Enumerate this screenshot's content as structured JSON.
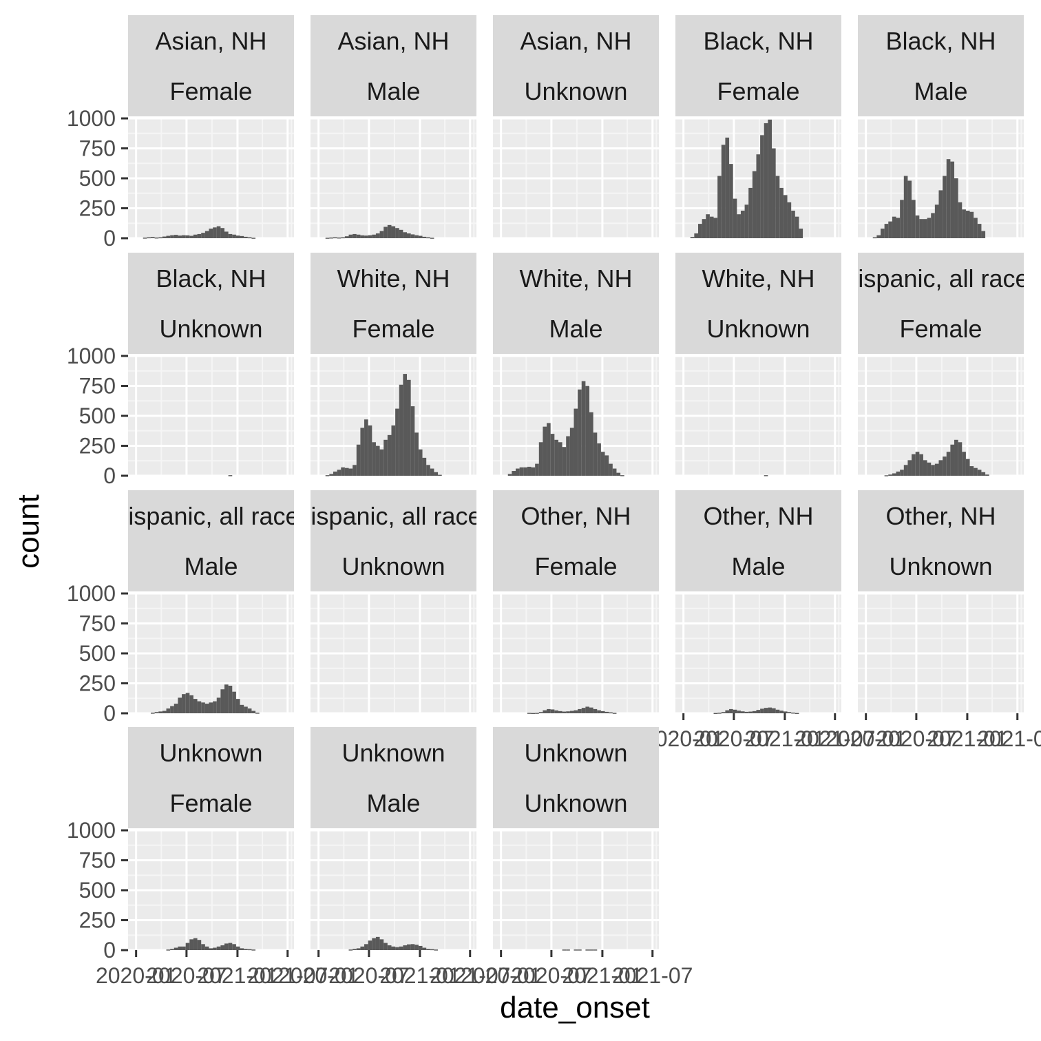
{
  "chart_data": {
    "type": "bar",
    "subtype": "faceted histogram",
    "xlabel": "date_onset",
    "ylabel": "count",
    "ylim": [
      0,
      1000
    ],
    "y_ticks": [
      0,
      250,
      500,
      750,
      1000
    ],
    "y_tick_labels": [
      "0",
      "250",
      "500",
      "750",
      "1000"
    ],
    "x_tick_labels": [
      "2020-01",
      "2020-07",
      "2021-01",
      "2021-07"
    ],
    "xlim": [
      "2019-12-03",
      "2021-07-24"
    ],
    "bin_start": "2019-12-29",
    "bin_width_days": 14,
    "grid": true,
    "facets": [
      {
        "strip": [
          "Asian, NH",
          "Female"
        ],
        "values": [
          0,
          0,
          5,
          8,
          10,
          6,
          8,
          14,
          20,
          25,
          28,
          22,
          25,
          24,
          20,
          30,
          35,
          45,
          60,
          80,
          90,
          100,
          85,
          55,
          35,
          30,
          22,
          18,
          12,
          8,
          4,
          0
        ]
      },
      {
        "strip": [
          "Asian, NH",
          "Male"
        ],
        "values": [
          0,
          0,
          4,
          6,
          8,
          6,
          8,
          16,
          30,
          35,
          30,
          24,
          22,
          25,
          30,
          40,
          60,
          95,
          110,
          100,
          85,
          70,
          50,
          40,
          32,
          25,
          20,
          12,
          8,
          4,
          0,
          0
        ]
      },
      {
        "strip": [
          "Asian, NH",
          "Unknown"
        ],
        "values": [
          0,
          0,
          0,
          0,
          0,
          0,
          0,
          0,
          0,
          0,
          0,
          0,
          0,
          0,
          0,
          0,
          0,
          0,
          0,
          0,
          0,
          0,
          0,
          0,
          0,
          0,
          0,
          0,
          0,
          0,
          0,
          0
        ]
      },
      {
        "strip": [
          "Black, NH",
          "Female"
        ],
        "values": [
          0,
          0,
          10,
          40,
          120,
          160,
          200,
          180,
          170,
          520,
          780,
          840,
          620,
          330,
          200,
          230,
          280,
          420,
          560,
          700,
          860,
          960,
          990,
          750,
          520,
          420,
          360,
          300,
          230,
          180,
          80,
          0
        ]
      },
      {
        "strip": [
          "Black, NH",
          "Male"
        ],
        "values": [
          0,
          0,
          8,
          25,
          80,
          120,
          140,
          180,
          170,
          320,
          520,
          480,
          320,
          190,
          160,
          160,
          170,
          210,
          280,
          400,
          520,
          660,
          640,
          500,
          300,
          240,
          230,
          220,
          170,
          120,
          60,
          0
        ]
      },
      {
        "strip": [
          "Black, NH",
          "Unknown"
        ],
        "values": [
          0,
          0,
          0,
          0,
          0,
          0,
          0,
          0,
          0,
          0,
          0,
          0,
          0,
          0,
          0,
          0,
          0,
          0,
          0,
          0,
          0,
          0,
          0,
          0,
          5,
          0,
          0,
          0,
          0,
          0,
          0,
          0
        ]
      },
      {
        "strip": [
          "White, NH",
          "Female"
        ],
        "values": [
          0,
          0,
          5,
          15,
          35,
          50,
          70,
          65,
          60,
          90,
          260,
          400,
          470,
          420,
          280,
          250,
          220,
          300,
          340,
          420,
          560,
          760,
          850,
          800,
          580,
          360,
          220,
          150,
          90,
          60,
          30,
          8
        ]
      },
      {
        "strip": [
          "White, NH",
          "Male"
        ],
        "values": [
          0,
          0,
          15,
          40,
          60,
          70,
          70,
          75,
          70,
          100,
          280,
          410,
          440,
          350,
          300,
          280,
          240,
          330,
          400,
          560,
          720,
          790,
          750,
          530,
          360,
          270,
          200,
          170,
          100,
          60,
          25,
          5
        ]
      },
      {
        "strip": [
          "White, NH",
          "Unknown"
        ],
        "values": [
          0,
          0,
          0,
          0,
          0,
          0,
          0,
          0,
          0,
          0,
          0,
          0,
          0,
          0,
          0,
          0,
          0,
          0,
          0,
          0,
          0,
          5,
          0,
          0,
          0,
          0,
          0,
          0,
          0,
          0,
          0,
          0
        ]
      },
      {
        "strip": [
          "Hispanic, all races",
          "Female"
        ],
        "values": [
          0,
          0,
          0,
          0,
          0,
          4,
          10,
          20,
          35,
          50,
          90,
          130,
          180,
          200,
          180,
          130,
          110,
          90,
          100,
          130,
          160,
          200,
          260,
          300,
          280,
          200,
          140,
          80,
          65,
          50,
          30,
          10
        ]
      },
      {
        "strip": [
          "Hispanic, all races",
          "Male"
        ],
        "values": [
          0,
          0,
          0,
          0,
          5,
          10,
          15,
          20,
          40,
          60,
          80,
          130,
          160,
          170,
          150,
          120,
          100,
          90,
          80,
          90,
          100,
          130,
          200,
          240,
          230,
          180,
          120,
          70,
          55,
          40,
          20,
          5
        ]
      },
      {
        "strip": [
          "Hispanic, all races",
          "Unknown"
        ],
        "values": [
          0,
          0,
          0,
          0,
          0,
          0,
          0,
          0,
          0,
          0,
          0,
          0,
          0,
          0,
          0,
          0,
          0,
          0,
          0,
          0,
          0,
          0,
          0,
          0,
          0,
          0,
          0,
          0,
          0,
          0,
          0,
          0
        ]
      },
      {
        "strip": [
          "Other, NH",
          "Female"
        ],
        "values": [
          0,
          0,
          0,
          0,
          0,
          0,
          0,
          4,
          3,
          4,
          10,
          25,
          35,
          32,
          24,
          18,
          14,
          16,
          20,
          25,
          35,
          45,
          55,
          48,
          35,
          25,
          18,
          12,
          8,
          4,
          0,
          0
        ]
      },
      {
        "strip": [
          "Other, NH",
          "Male"
        ],
        "values": [
          0,
          0,
          0,
          0,
          0,
          0,
          0,
          0,
          3,
          5,
          10,
          25,
          35,
          30,
          22,
          16,
          12,
          14,
          18,
          28,
          38,
          45,
          48,
          42,
          30,
          22,
          15,
          10,
          6,
          3,
          0,
          0
        ]
      },
      {
        "strip": [
          "Other, NH",
          "Unknown"
        ],
        "values": [
          0,
          0,
          0,
          0,
          0,
          0,
          0,
          0,
          0,
          0,
          0,
          0,
          0,
          0,
          0,
          0,
          0,
          0,
          0,
          0,
          0,
          0,
          0,
          0,
          0,
          0,
          0,
          0,
          0,
          0,
          0,
          0
        ]
      },
      {
        "strip": [
          "Unknown",
          "Female"
        ],
        "values": [
          0,
          0,
          0,
          0,
          0,
          0,
          0,
          0,
          5,
          10,
          20,
          30,
          30,
          60,
          90,
          100,
          85,
          50,
          30,
          15,
          20,
          30,
          40,
          55,
          60,
          50,
          30,
          15,
          10,
          8,
          5,
          0
        ]
      },
      {
        "strip": [
          "Unknown",
          "Male"
        ],
        "values": [
          0,
          0,
          0,
          0,
          0,
          0,
          0,
          0,
          5,
          10,
          15,
          30,
          50,
          80,
          100,
          110,
          90,
          60,
          40,
          30,
          25,
          30,
          40,
          48,
          50,
          45,
          35,
          20,
          10,
          8,
          5,
          0
        ]
      },
      {
        "strip": [
          "Unknown",
          "Unknown"
        ],
        "values": [
          0,
          0,
          0,
          0,
          0,
          0,
          0,
          0,
          0,
          0,
          0,
          0,
          0,
          0,
          0,
          0,
          5,
          5,
          0,
          5,
          5,
          0,
          5,
          5,
          5,
          0,
          0,
          0,
          0,
          0,
          0,
          0
        ]
      }
    ]
  }
}
